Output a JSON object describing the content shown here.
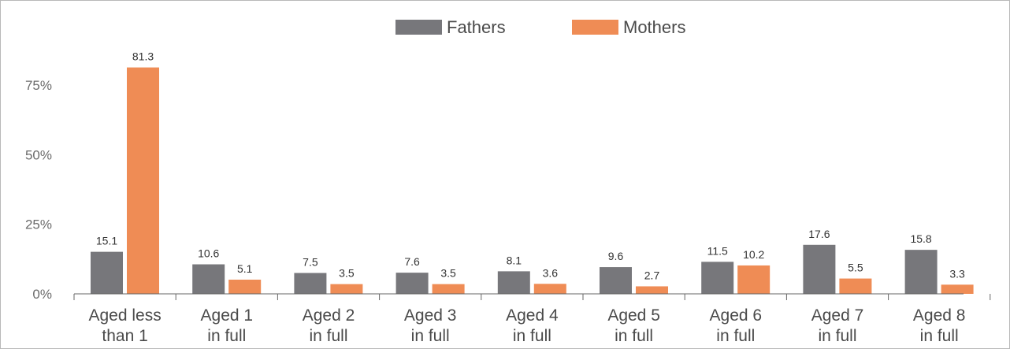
{
  "chart_data": {
    "type": "bar",
    "categories": [
      [
        "Aged less",
        "than 1"
      ],
      [
        "Aged 1",
        "in full"
      ],
      [
        "Aged 2",
        "in full"
      ],
      [
        "Aged 3",
        "in full"
      ],
      [
        "Aged 4",
        "in full"
      ],
      [
        "Aged 5",
        "in full"
      ],
      [
        "Aged 6",
        "in full"
      ],
      [
        "Aged 7",
        "in full"
      ],
      [
        "Aged 8",
        "in full"
      ]
    ],
    "series": [
      {
        "name": "Fathers",
        "color": "#77777b",
        "values": [
          15.1,
          10.6,
          7.5,
          7.6,
          8.1,
          9.6,
          11.5,
          17.6,
          15.8
        ],
        "labels": [
          "15.1",
          "10.6",
          "7.5",
          "7.6",
          "8.1",
          "9.6",
          "11.5",
          "17.6",
          "15.8"
        ]
      },
      {
        "name": "Mothers",
        "color": "#ef8c55",
        "values": [
          81.3,
          5.1,
          3.5,
          3.5,
          3.6,
          2.7,
          10.2,
          5.5,
          3.3
        ],
        "labels": [
          "81.3",
          "5.1",
          "3.5",
          "3.5",
          "3.6",
          "2.7",
          "10.2",
          "5.5",
          "3.3"
        ]
      }
    ],
    "yticks": [
      {
        "value": 0,
        "label": "0%"
      },
      {
        "value": 25,
        "label": "25%"
      },
      {
        "value": 50,
        "label": "50%"
      },
      {
        "value": 75,
        "label": "75%"
      }
    ],
    "ylim": [
      0,
      100
    ],
    "grid": false,
    "legend": "top-center",
    "title": "",
    "xlabel": "",
    "ylabel": ""
  }
}
